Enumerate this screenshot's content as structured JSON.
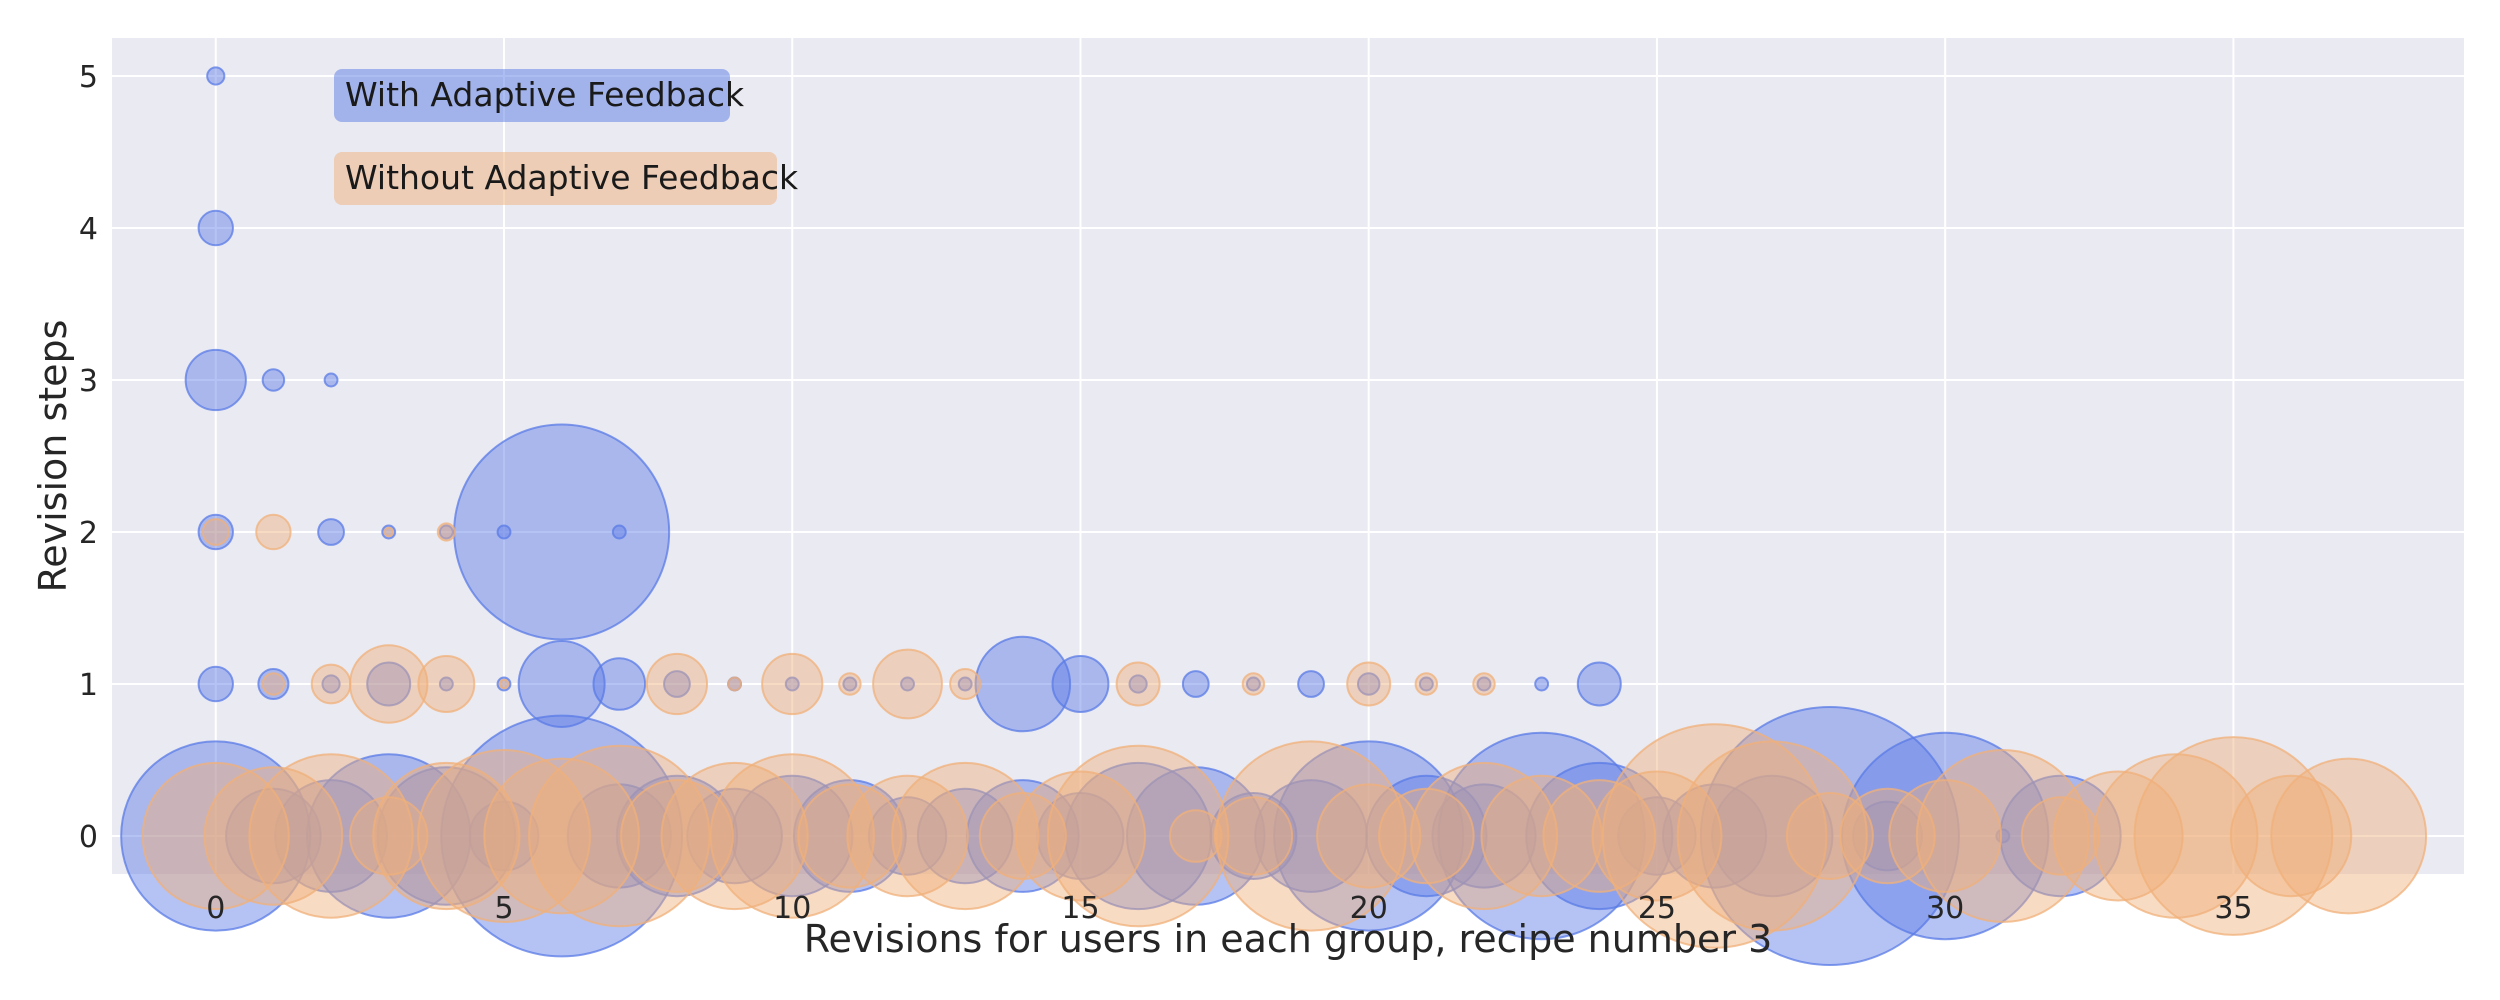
{
  "chart_data": {
    "type": "scatter",
    "subtype": "bubble",
    "title": "",
    "xlabel": "Revisions for users in each group, recipe number 3",
    "ylabel": "Revision steps",
    "xlim": [
      -1.8,
      39
    ],
    "ylim": [
      -0.25,
      5.25
    ],
    "xticks": [
      0,
      5,
      10,
      15,
      20,
      25,
      30,
      35
    ],
    "yticks": [
      0,
      1,
      2,
      3,
      4,
      5
    ],
    "grid": true,
    "legend_position": "top-left",
    "colors": {
      "background": "#eaeaf2",
      "grid": "#ffffff",
      "with": "#5a7be6",
      "without": "#f0b07a",
      "text": "#262626"
    },
    "series": [
      {
        "name": "With Adaptive Feedback",
        "color": "#5a7be6",
        "points": [
          {
            "x": 0,
            "y": 5,
            "r": 2
          },
          {
            "x": 0,
            "y": 4,
            "r": 4
          },
          {
            "x": 0,
            "y": 3,
            "r": 7
          },
          {
            "x": 1,
            "y": 3,
            "r": 2.5
          },
          {
            "x": 2,
            "y": 3,
            "r": 1.5
          },
          {
            "x": 0,
            "y": 2,
            "r": 4
          },
          {
            "x": 2,
            "y": 2,
            "r": 3
          },
          {
            "x": 3,
            "y": 2,
            "r": 1.5
          },
          {
            "x": 4,
            "y": 2,
            "r": 1.5
          },
          {
            "x": 5,
            "y": 2,
            "r": 1.5
          },
          {
            "x": 6,
            "y": 2,
            "r": 25
          },
          {
            "x": 7,
            "y": 2,
            "r": 1.5
          },
          {
            "x": 0,
            "y": 1,
            "r": 4
          },
          {
            "x": 1,
            "y": 1,
            "r": 3.5
          },
          {
            "x": 2,
            "y": 1,
            "r": 2
          },
          {
            "x": 3,
            "y": 1,
            "r": 5
          },
          {
            "x": 4,
            "y": 1,
            "r": 1.5
          },
          {
            "x": 5,
            "y": 1,
            "r": 1.5
          },
          {
            "x": 6,
            "y": 1,
            "r": 10
          },
          {
            "x": 7,
            "y": 1,
            "r": 6
          },
          {
            "x": 8,
            "y": 1,
            "r": 3
          },
          {
            "x": 9,
            "y": 1,
            "r": 1.5
          },
          {
            "x": 10,
            "y": 1,
            "r": 1.5
          },
          {
            "x": 11,
            "y": 1,
            "r": 1.5
          },
          {
            "x": 12,
            "y": 1,
            "r": 1.5
          },
          {
            "x": 13,
            "y": 1,
            "r": 1.5
          },
          {
            "x": 14,
            "y": 1,
            "r": 11
          },
          {
            "x": 15,
            "y": 1,
            "r": 6.5
          },
          {
            "x": 16,
            "y": 1,
            "r": 2
          },
          {
            "x": 17,
            "y": 1,
            "r": 3
          },
          {
            "x": 18,
            "y": 1,
            "r": 1.5
          },
          {
            "x": 19,
            "y": 1,
            "r": 3
          },
          {
            "x": 20,
            "y": 1,
            "r": 2.5
          },
          {
            "x": 21,
            "y": 1,
            "r": 1.5
          },
          {
            "x": 22,
            "y": 1,
            "r": 1.5
          },
          {
            "x": 23,
            "y": 1,
            "r": 1.5
          },
          {
            "x": 24,
            "y": 1,
            "r": 5
          },
          {
            "x": 0,
            "y": 0,
            "r": 22
          },
          {
            "x": 1,
            "y": 0,
            "r": 11
          },
          {
            "x": 2,
            "y": 0,
            "r": 13
          },
          {
            "x": 3,
            "y": 0,
            "r": 19
          },
          {
            "x": 4,
            "y": 0,
            "r": 16
          },
          {
            "x": 5,
            "y": 0,
            "r": 8
          },
          {
            "x": 6,
            "y": 0,
            "r": 28
          },
          {
            "x": 7,
            "y": 0,
            "r": 12
          },
          {
            "x": 8,
            "y": 0,
            "r": 14
          },
          {
            "x": 9,
            "y": 0,
            "r": 11
          },
          {
            "x": 10,
            "y": 0,
            "r": 14
          },
          {
            "x": 11,
            "y": 0,
            "r": 13
          },
          {
            "x": 12,
            "y": 0,
            "r": 9
          },
          {
            "x": 13,
            "y": 0,
            "r": 11
          },
          {
            "x": 14,
            "y": 0,
            "r": 13
          },
          {
            "x": 15,
            "y": 0,
            "r": 10
          },
          {
            "x": 16,
            "y": 0,
            "r": 17
          },
          {
            "x": 17,
            "y": 0,
            "r": 16
          },
          {
            "x": 18,
            "y": 0,
            "r": 10
          },
          {
            "x": 19,
            "y": 0,
            "r": 13
          },
          {
            "x": 20,
            "y": 0,
            "r": 22
          },
          {
            "x": 21,
            "y": 0,
            "r": 14
          },
          {
            "x": 22,
            "y": 0,
            "r": 12
          },
          {
            "x": 23,
            "y": 0,
            "r": 24
          },
          {
            "x": 24,
            "y": 0,
            "r": 17
          },
          {
            "x": 25,
            "y": 0,
            "r": 9
          },
          {
            "x": 26,
            "y": 0,
            "r": 12
          },
          {
            "x": 27,
            "y": 0,
            "r": 14
          },
          {
            "x": 28,
            "y": 0,
            "r": 30
          },
          {
            "x": 29,
            "y": 0,
            "r": 8
          },
          {
            "x": 30,
            "y": 0,
            "r": 24
          },
          {
            "x": 31,
            "y": 0,
            "r": 1.5
          },
          {
            "x": 32,
            "y": 0,
            "r": 14
          }
        ]
      },
      {
        "name": "Without Adaptive Feedback",
        "color": "#f0b07a",
        "points": [
          {
            "x": 0,
            "y": 2,
            "r": 3
          },
          {
            "x": 1,
            "y": 2,
            "r": 4
          },
          {
            "x": 3,
            "y": 2,
            "r": 1
          },
          {
            "x": 4,
            "y": 2,
            "r": 2
          },
          {
            "x": 1,
            "y": 1,
            "r": 2.5
          },
          {
            "x": 2,
            "y": 1,
            "r": 4.5
          },
          {
            "x": 3,
            "y": 1,
            "r": 9
          },
          {
            "x": 4,
            "y": 1,
            "r": 6.5
          },
          {
            "x": 5,
            "y": 1,
            "r": 1
          },
          {
            "x": 8,
            "y": 1,
            "r": 7
          },
          {
            "x": 9,
            "y": 1,
            "r": 1.5
          },
          {
            "x": 10,
            "y": 1,
            "r": 7
          },
          {
            "x": 11,
            "y": 1,
            "r": 2.5
          },
          {
            "x": 12,
            "y": 1,
            "r": 8
          },
          {
            "x": 13,
            "y": 1,
            "r": 3.5
          },
          {
            "x": 16,
            "y": 1,
            "r": 5
          },
          {
            "x": 18,
            "y": 1,
            "r": 2.5
          },
          {
            "x": 20,
            "y": 1,
            "r": 5
          },
          {
            "x": 21,
            "y": 1,
            "r": 2.5
          },
          {
            "x": 22,
            "y": 1,
            "r": 2.5
          },
          {
            "x": 0,
            "y": 0,
            "r": 17
          },
          {
            "x": 1,
            "y": 0,
            "r": 16
          },
          {
            "x": 2,
            "y": 0,
            "r": 19
          },
          {
            "x": 3,
            "y": 0,
            "r": 9
          },
          {
            "x": 4,
            "y": 0,
            "r": 17
          },
          {
            "x": 5,
            "y": 0,
            "r": 20
          },
          {
            "x": 6,
            "y": 0,
            "r": 18
          },
          {
            "x": 7,
            "y": 0,
            "r": 21
          },
          {
            "x": 8,
            "y": 0,
            "r": 13
          },
          {
            "x": 9,
            "y": 0,
            "r": 17
          },
          {
            "x": 10,
            "y": 0,
            "r": 19
          },
          {
            "x": 11,
            "y": 0,
            "r": 12
          },
          {
            "x": 12,
            "y": 0,
            "r": 14
          },
          {
            "x": 13,
            "y": 0,
            "r": 17
          },
          {
            "x": 14,
            "y": 0,
            "r": 10
          },
          {
            "x": 15,
            "y": 0,
            "r": 15
          },
          {
            "x": 16,
            "y": 0,
            "r": 21
          },
          {
            "x": 17,
            "y": 0,
            "r": 6
          },
          {
            "x": 18,
            "y": 0,
            "r": 9
          },
          {
            "x": 19,
            "y": 0,
            "r": 22
          },
          {
            "x": 20,
            "y": 0,
            "r": 12
          },
          {
            "x": 21,
            "y": 0,
            "r": 11
          },
          {
            "x": 22,
            "y": 0,
            "r": 17
          },
          {
            "x": 23,
            "y": 0,
            "r": 14
          },
          {
            "x": 24,
            "y": 0,
            "r": 13
          },
          {
            "x": 25,
            "y": 0,
            "r": 15
          },
          {
            "x": 26,
            "y": 0,
            "r": 26
          },
          {
            "x": 27,
            "y": 0,
            "r": 22
          },
          {
            "x": 28,
            "y": 0,
            "r": 10
          },
          {
            "x": 29,
            "y": 0,
            "r": 11
          },
          {
            "x": 30,
            "y": 0,
            "r": 13
          },
          {
            "x": 31,
            "y": 0,
            "r": 20
          },
          {
            "x": 32,
            "y": 0,
            "r": 9
          },
          {
            "x": 33,
            "y": 0,
            "r": 15
          },
          {
            "x": 34,
            "y": 0,
            "r": 19
          },
          {
            "x": 35,
            "y": 0,
            "r": 23
          },
          {
            "x": 36,
            "y": 0,
            "r": 14
          },
          {
            "x": 37,
            "y": 0,
            "r": 18
          }
        ]
      }
    ]
  }
}
